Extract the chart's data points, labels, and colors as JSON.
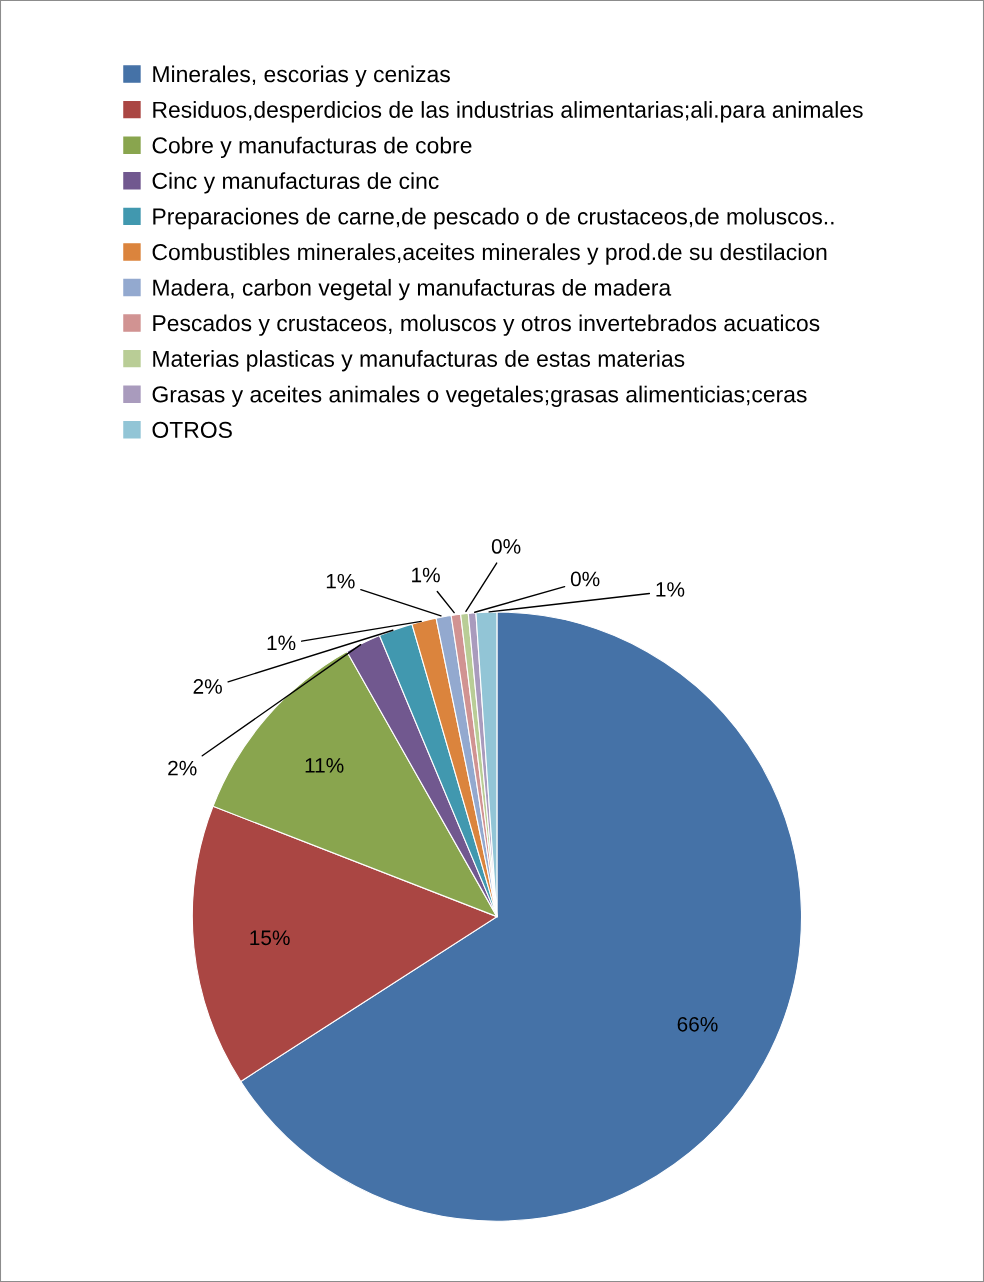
{
  "chart_data": {
    "type": "pie",
    "categories": [
      "Minerales, escorias y cenizas",
      "Residuos,desperdicios de las industrias alimentarias;ali.para animales",
      "Cobre y manufacturas de cobre",
      "Cinc y manufacturas de cinc",
      "Preparaciones de carne,de pescado o de crustaceos,de moluscos..",
      "Combustibles minerales,aceites minerales y prod.de su destilacion",
      "Madera, carbon vegetal y manufacturas de madera",
      "Pescados y crustaceos, moluscos y otros invertebrados acuaticos",
      "Materias plasticas y manufacturas de estas materias",
      "Grasas y aceites animales o vegetales;grasas alimenticias;ceras",
      "OTROS"
    ],
    "values": [
      65.9,
      15.0,
      10.9,
      1.9,
      1.8,
      1.3,
      0.8,
      0.5,
      0.4,
      0.4,
      1.1
    ],
    "value_labels": [
      "66%",
      "15%",
      "11%",
      "2%",
      "2%",
      "1%",
      "1%",
      "1%",
      "0%",
      "0%",
      "1%"
    ],
    "colors": [
      "#4572a7",
      "#aa4643",
      "#89a54e",
      "#71588f",
      "#4198af",
      "#db843d",
      "#93a9cf",
      "#d19392",
      "#b9cd96",
      "#a99bbd",
      "#92c5d6"
    ],
    "legend": "top"
  }
}
